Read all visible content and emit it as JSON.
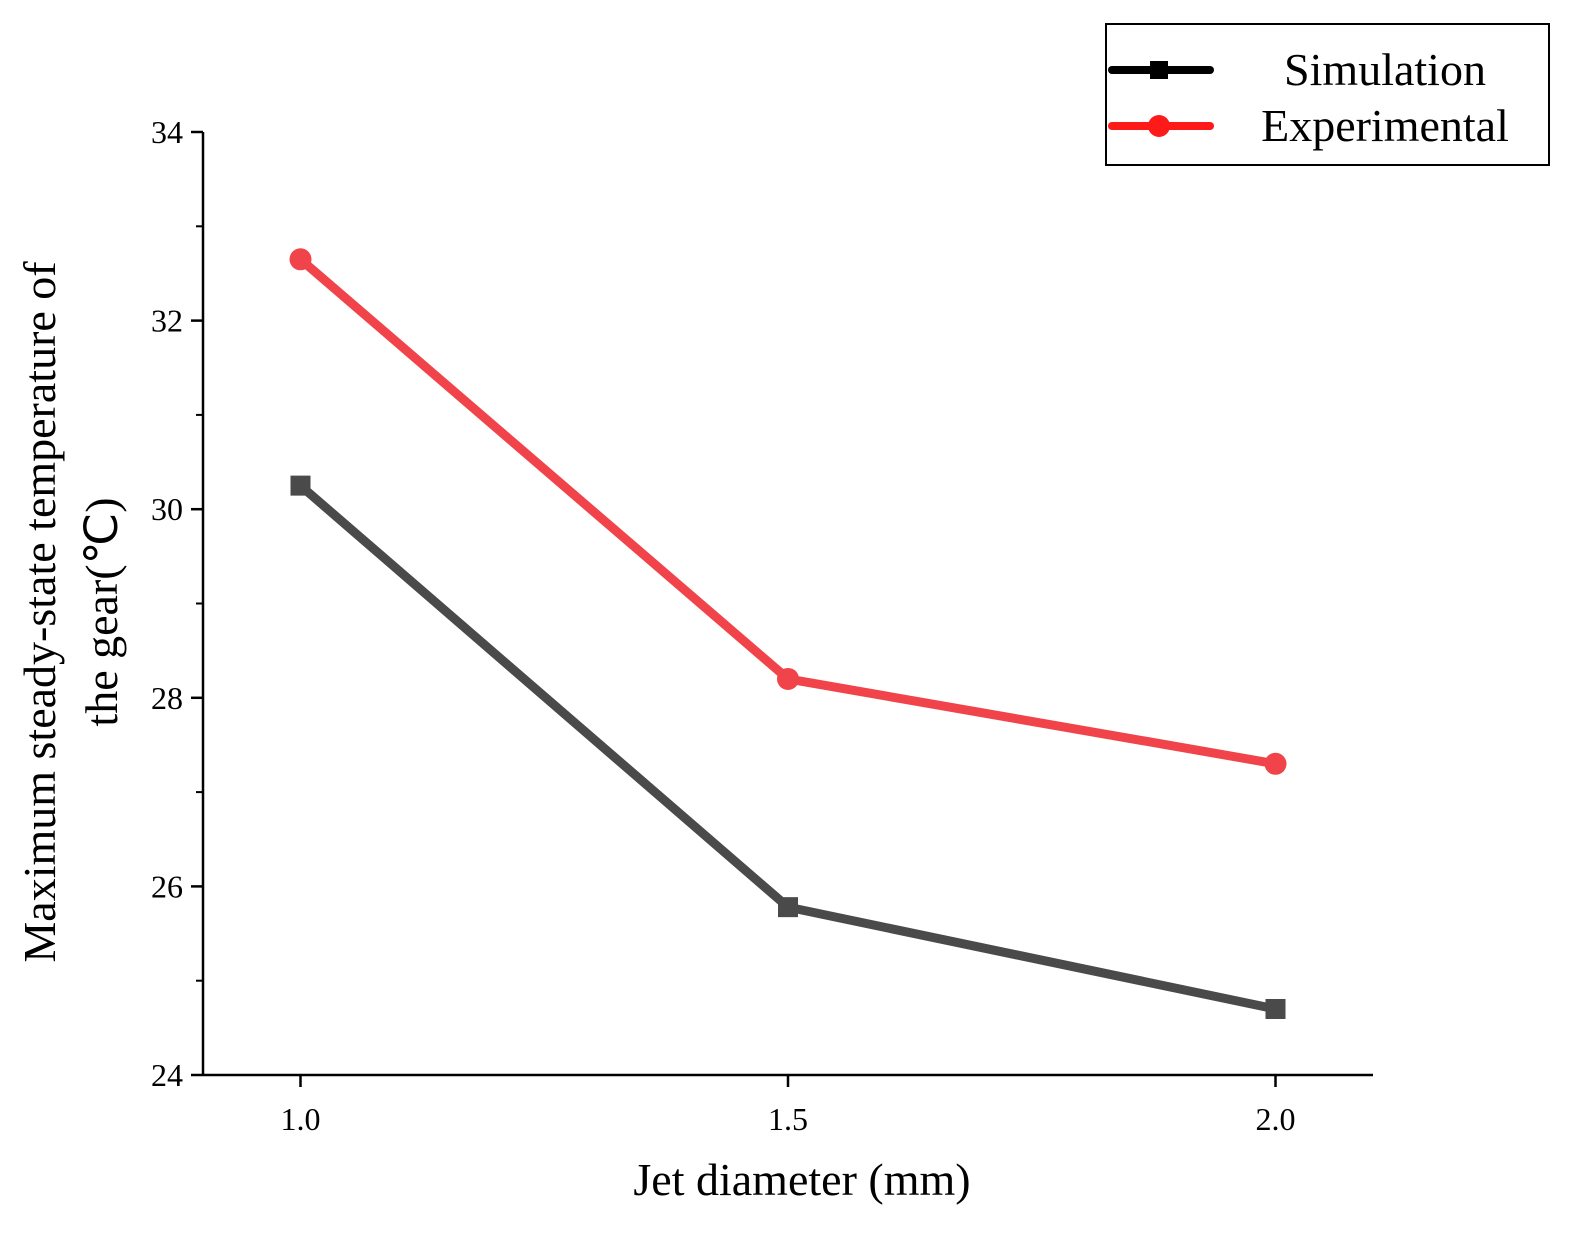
{
  "chart_data": {
    "type": "line",
    "title": "",
    "xlabel": "Jet diameter (mm)",
    "ylabel_lines": [
      "Maximum steady-state temperature of",
      "the gear(℃)"
    ],
    "x": [
      1.0,
      1.5,
      2.0
    ],
    "x_tick_labels": [
      "1.0",
      "1.5",
      "2.0"
    ],
    "xlim": [
      0.9,
      2.1
    ],
    "ylim": [
      24,
      34
    ],
    "y_ticks": [
      24,
      26,
      28,
      30,
      32,
      34
    ],
    "y_tick_labels": [
      "24",
      "26",
      "28",
      "30",
      "32",
      "34"
    ],
    "grid": false,
    "legend_position": "top-right",
    "series": [
      {
        "name": "Simulation",
        "values": [
          30.25,
          25.78,
          24.7
        ],
        "color": "#4a4a4a",
        "legend_color": "#000000",
        "marker": "square"
      },
      {
        "name": "Experimental",
        "values": [
          32.65,
          28.2,
          27.3
        ],
        "color": "#f0444a",
        "legend_color": "#ff1a1a",
        "marker": "circle"
      }
    ]
  }
}
